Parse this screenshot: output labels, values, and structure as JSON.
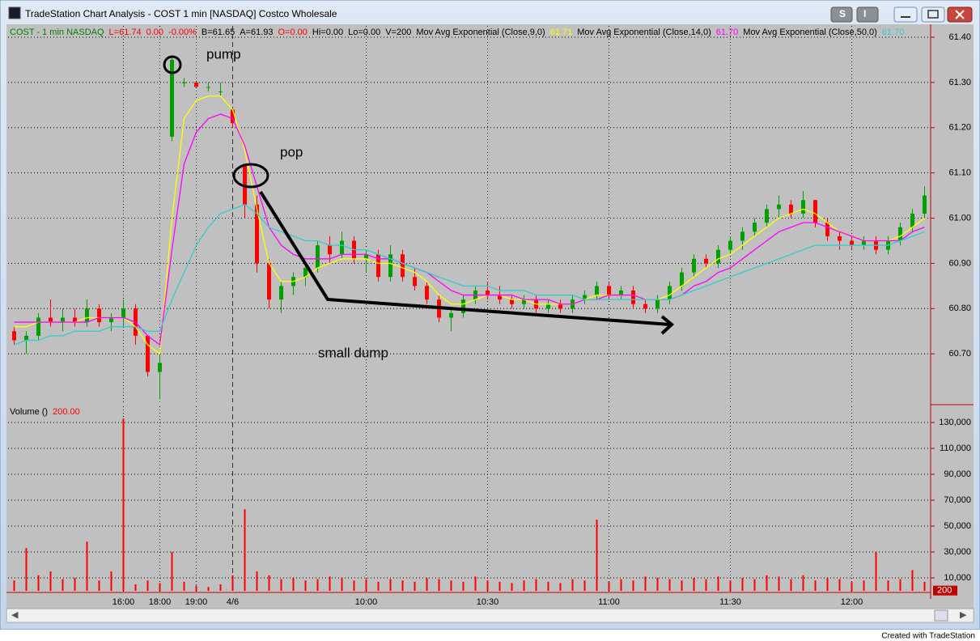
{
  "window": {
    "title": "TradeStation Chart Analysis - COST 1 min [NASDAQ] Costco Wholesale",
    "buttons": [
      "S",
      "I"
    ],
    "footer": "Created with TradeStation"
  },
  "chart_data": [
    {
      "type": "candlestick",
      "title": "COST - 1 min  NASDAQ",
      "title_color": "#008000",
      "quote": [
        "L=61.74",
        "0.00",
        "-0.00%",
        "B=61.65",
        "A=61.93",
        "O=0.00",
        "Hi=0.00",
        "Lo=0.00",
        "V=200"
      ],
      "quote_colors": [
        "#ff0000",
        "#ff0000",
        "#ff0000",
        "#000000",
        "#000000",
        "#ff0000",
        "#000000",
        "#000000",
        "#000000"
      ],
      "up_color": "#00a000",
      "down_color": "#ff0000",
      "open": [
        60.75,
        60.73,
        60.74,
        60.78,
        60.77,
        60.78,
        60.77,
        60.8,
        60.77,
        60.78,
        60.8,
        60.74,
        60.66,
        61.18,
        61.3,
        61.3,
        61.29,
        61.28,
        61.24,
        61.12,
        61.03,
        60.9,
        60.82,
        60.85,
        60.87,
        60.89,
        60.94,
        60.92,
        60.95,
        60.91,
        60.92,
        60.87,
        60.92,
        60.87,
        60.85,
        60.82,
        60.78,
        60.79,
        60.82,
        60.84,
        60.83,
        60.82,
        60.81,
        60.82,
        60.8,
        60.81,
        60.8,
        60.82,
        60.83,
        60.85,
        60.83,
        60.84,
        60.81,
        60.8,
        60.82,
        60.85,
        60.88,
        60.91,
        60.9,
        60.93,
        60.95,
        60.97,
        60.99,
        61.02,
        61.03,
        61.01,
        61.04,
        60.99,
        60.96,
        60.95,
        60.94,
        60.95,
        60.93,
        60.95,
        60.98,
        61.01
      ],
      "high": [
        60.76,
        60.75,
        60.79,
        60.82,
        60.8,
        60.8,
        60.82,
        60.81,
        60.79,
        60.82,
        60.81,
        60.74,
        60.7,
        61.36,
        61.31,
        61.3,
        61.3,
        61.3,
        61.24,
        61.12,
        61.05,
        60.91,
        60.86,
        60.88,
        60.9,
        60.95,
        60.96,
        60.97,
        60.96,
        60.93,
        60.93,
        60.94,
        60.93,
        60.89,
        60.86,
        60.83,
        60.8,
        60.83,
        60.85,
        60.86,
        60.85,
        60.83,
        60.83,
        60.83,
        60.82,
        60.82,
        60.83,
        60.84,
        60.86,
        60.86,
        60.85,
        60.85,
        60.82,
        60.83,
        60.86,
        60.89,
        60.92,
        60.92,
        60.94,
        60.96,
        60.98,
        61.0,
        61.03,
        61.05,
        61.04,
        61.06,
        61.04,
        61.0,
        60.97,
        60.96,
        60.96,
        60.96,
        60.96,
        60.99,
        61.02,
        61.07
      ],
      "low": [
        60.72,
        60.7,
        60.73,
        60.76,
        60.75,
        60.76,
        60.76,
        60.76,
        60.75,
        60.76,
        60.72,
        60.65,
        60.6,
        61.17,
        61.29,
        61.29,
        61.28,
        61.27,
        61.2,
        61.0,
        60.88,
        60.8,
        60.79,
        60.83,
        60.85,
        60.88,
        60.9,
        60.91,
        60.9,
        60.88,
        60.86,
        60.86,
        60.86,
        60.84,
        60.81,
        60.77,
        60.75,
        60.78,
        60.81,
        60.82,
        60.81,
        60.8,
        60.8,
        60.79,
        60.79,
        60.79,
        60.79,
        60.81,
        60.82,
        60.82,
        60.82,
        60.8,
        60.79,
        60.79,
        60.81,
        60.84,
        60.87,
        60.89,
        60.89,
        60.92,
        60.93,
        60.96,
        60.98,
        61.0,
        61.0,
        61.0,
        60.98,
        60.95,
        60.93,
        60.93,
        60.93,
        60.92,
        60.92,
        60.94,
        60.97,
        61.0
      ],
      "close": [
        60.73,
        60.74,
        60.78,
        60.77,
        60.78,
        60.77,
        60.8,
        60.77,
        60.78,
        60.8,
        60.74,
        60.66,
        60.68,
        61.35,
        61.3,
        61.29,
        61.29,
        61.28,
        61.21,
        61.03,
        60.9,
        60.82,
        60.85,
        60.87,
        60.89,
        60.94,
        60.92,
        60.95,
        60.91,
        60.92,
        60.87,
        60.92,
        60.87,
        60.85,
        60.82,
        60.78,
        60.79,
        60.82,
        60.84,
        60.83,
        60.82,
        60.81,
        60.82,
        60.8,
        60.81,
        60.8,
        60.82,
        60.83,
        60.85,
        60.83,
        60.84,
        60.81,
        60.8,
        60.82,
        60.85,
        60.88,
        60.91,
        60.9,
        60.93,
        60.95,
        60.97,
        60.99,
        61.02,
        61.03,
        61.01,
        61.04,
        60.99,
        60.96,
        60.95,
        60.94,
        60.95,
        60.93,
        60.95,
        60.98,
        61.01,
        61.05
      ],
      "series": [
        {
          "name": "Mov Avg Exponential (Close,9,0)",
          "color": "#ffff00",
          "last_value": {
            "value": 61.71,
            "label": "61.71"
          },
          "values": [
            60.76,
            60.76,
            60.77,
            60.77,
            60.77,
            60.77,
            60.78,
            60.78,
            60.78,
            60.78,
            60.76,
            60.72,
            60.7,
            61.0,
            61.22,
            61.26,
            61.27,
            61.27,
            61.24,
            61.15,
            61.02,
            60.9,
            60.86,
            60.86,
            60.87,
            60.89,
            60.9,
            60.91,
            60.91,
            60.91,
            60.9,
            60.9,
            60.89,
            60.88,
            60.86,
            60.83,
            60.81,
            60.81,
            60.82,
            60.83,
            60.83,
            60.82,
            60.82,
            60.81,
            60.81,
            60.81,
            60.81,
            60.82,
            60.83,
            60.83,
            60.83,
            60.83,
            60.82,
            60.82,
            60.83,
            60.85,
            60.87,
            60.89,
            60.91,
            60.92,
            60.94,
            60.96,
            60.98,
            61.0,
            61.01,
            61.02,
            61.01,
            60.99,
            60.97,
            60.96,
            60.95,
            60.95,
            60.95,
            60.96,
            60.98,
            61.0
          ]
        },
        {
          "name": "Mov Avg Exponential (Close,14,0)",
          "color": "#ff00ff",
          "last_value": {
            "value": 61.7,
            "label": "61.70"
          },
          "values": [
            60.77,
            60.77,
            60.77,
            60.77,
            60.77,
            60.77,
            60.77,
            60.78,
            60.78,
            60.78,
            60.77,
            60.74,
            60.72,
            60.93,
            61.12,
            61.19,
            61.22,
            61.23,
            61.22,
            61.16,
            61.07,
            60.98,
            60.94,
            60.92,
            60.91,
            60.91,
            60.91,
            60.92,
            60.92,
            60.92,
            60.91,
            60.91,
            60.9,
            60.89,
            60.88,
            60.86,
            60.84,
            60.83,
            60.83,
            60.83,
            60.83,
            60.83,
            60.82,
            60.82,
            60.82,
            60.81,
            60.81,
            60.82,
            60.82,
            60.83,
            60.83,
            60.83,
            60.82,
            60.82,
            60.82,
            60.83,
            60.85,
            60.86,
            60.88,
            60.89,
            60.91,
            60.93,
            60.95,
            60.97,
            60.98,
            60.99,
            60.99,
            60.98,
            60.97,
            60.96,
            60.95,
            60.95,
            60.95,
            60.95,
            60.97,
            60.98
          ]
        },
        {
          "name": "Mov Avg Exponential (Close,50,0)",
          "color": "#33cccc",
          "last_value": {
            "value": 61.7,
            "label": "61.70"
          },
          "values": [
            60.72,
            60.73,
            60.73,
            60.74,
            60.74,
            60.75,
            60.75,
            60.75,
            60.76,
            60.76,
            60.76,
            60.75,
            60.75,
            60.82,
            60.88,
            60.94,
            60.98,
            61.01,
            61.02,
            61.03,
            61.01,
            60.98,
            60.97,
            60.96,
            60.95,
            60.95,
            60.94,
            60.94,
            60.93,
            60.93,
            60.92,
            60.91,
            60.9,
            60.89,
            60.88,
            60.87,
            60.86,
            60.85,
            60.85,
            60.85,
            60.84,
            60.84,
            60.84,
            60.83,
            60.83,
            60.83,
            60.83,
            60.82,
            60.82,
            60.82,
            60.82,
            60.82,
            60.82,
            60.82,
            60.82,
            60.83,
            60.84,
            60.85,
            60.86,
            60.87,
            60.88,
            60.89,
            60.9,
            60.91,
            60.92,
            60.93,
            60.94,
            60.94,
            60.94,
            60.94,
            60.94,
            60.94,
            60.94,
            60.95,
            60.96,
            60.97
          ]
        }
      ],
      "ylim": [
        60.593,
        61.425
      ],
      "yticks": [
        {
          "value": 60.7,
          "label": "60.70"
        },
        {
          "value": 60.8,
          "label": "60.80"
        },
        {
          "value": 60.9,
          "label": "60.90"
        },
        {
          "value": 61.0,
          "label": "61.00"
        },
        {
          "value": 61.1,
          "label": "61.10"
        },
        {
          "value": 61.2,
          "label": "61.20"
        },
        {
          "value": 61.3,
          "label": "61.30"
        },
        {
          "value": 61.4,
          "label": "61.40"
        }
      ],
      "grid": true,
      "annotations": [
        "pump",
        "pop",
        "small dump"
      ]
    },
    {
      "type": "bar",
      "title": "Volume ()",
      "title_value": {
        "value": 200,
        "label": "200.00"
      },
      "color": "#ff0000",
      "categories": [
        null,
        null,
        null,
        null,
        null,
        null,
        null,
        null,
        null,
        "16:00",
        null,
        null,
        "18:00",
        null,
        null,
        "19:00",
        null,
        null,
        "4/6",
        null,
        null,
        null,
        null,
        null,
        null,
        null,
        null,
        null,
        null,
        "10:00",
        null,
        null,
        null,
        null,
        null,
        null,
        null,
        null,
        null,
        "10:30",
        null,
        null,
        null,
        null,
        null,
        null,
        null,
        null,
        null,
        "11:00",
        null,
        null,
        null,
        null,
        null,
        null,
        null,
        null,
        null,
        "11:30",
        null,
        null,
        null,
        null,
        null,
        null,
        null,
        null,
        null,
        "12:00",
        null,
        null,
        null,
        null,
        null,
        null
      ],
      "values": [
        8000,
        33000,
        12000,
        15000,
        9000,
        10000,
        38000,
        8000,
        15000,
        133000,
        5000,
        8000,
        6000,
        30000,
        7000,
        4000,
        3000,
        5000,
        12000,
        63000,
        15000,
        12000,
        9000,
        10000,
        8000,
        9000,
        11000,
        10000,
        8000,
        9000,
        7000,
        9000,
        8000,
        7000,
        10000,
        9000,
        8000,
        7000,
        11000,
        8000,
        7000,
        6000,
        8000,
        9000,
        7000,
        6000,
        9000,
        8000,
        55000,
        7000,
        9000,
        8000,
        11000,
        10000,
        9000,
        8000,
        10000,
        9000,
        11000,
        8000,
        10000,
        9000,
        12000,
        11000,
        9000,
        12000,
        8000,
        10000,
        9000,
        7000,
        8000,
        30000,
        8000,
        9000,
        16000,
        7000
      ],
      "ylim": [
        -1250,
        142500
      ],
      "yticks": [
        {
          "value": 10000,
          "label": "10,000"
        },
        {
          "value": 30000,
          "label": "30,000"
        },
        {
          "value": 50000,
          "label": "50,000"
        },
        {
          "value": 70000,
          "label": "70,000"
        },
        {
          "value": 90000,
          "label": "90,000"
        },
        {
          "value": 110000,
          "label": "110,000"
        },
        {
          "value": 130000,
          "label": "130,000"
        }
      ],
      "grid": true,
      "marker": {
        "value": 200,
        "label": "200"
      }
    }
  ]
}
